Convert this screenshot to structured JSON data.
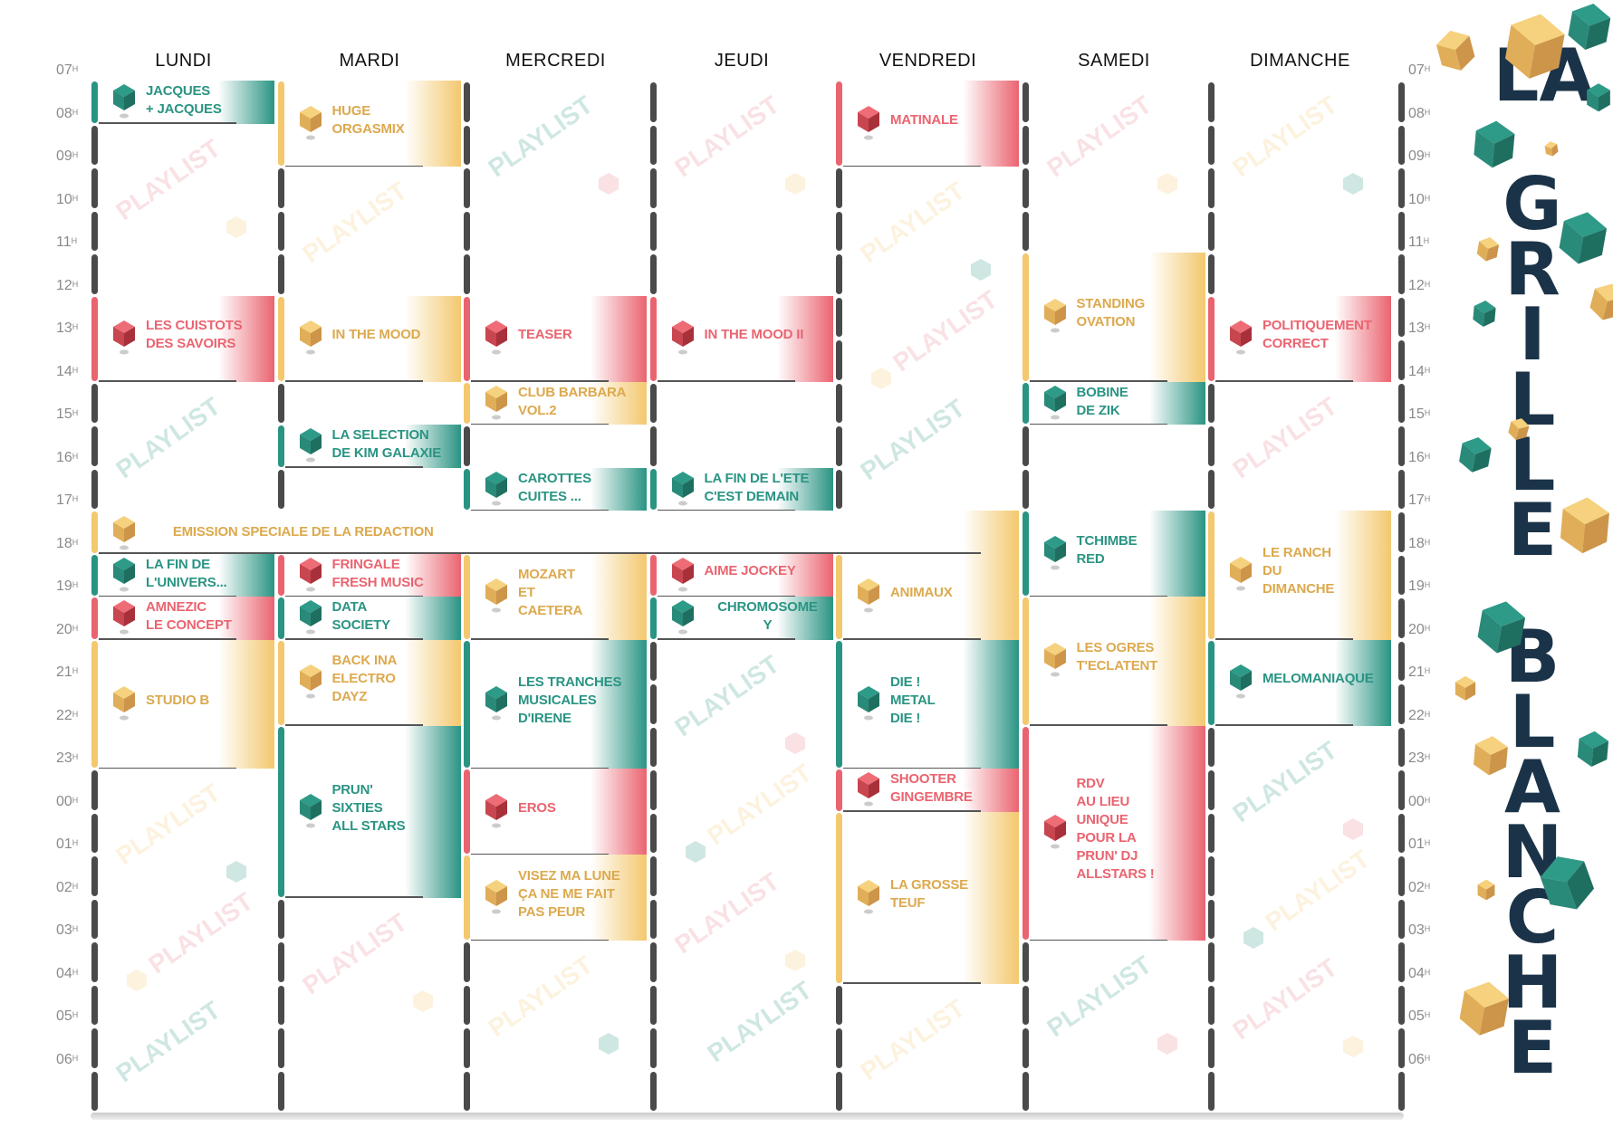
{
  "title": {
    "line1": "LA",
    "line2": "GRILLE",
    "line3": "BLANCHE"
  },
  "watermark": "PLAYLIST",
  "colors": {
    "teal": "#2a9483",
    "yellow": "#f3c86e",
    "red": "#ea6470",
    "grid": "#4a4a4a",
    "title": "#1b3348"
  },
  "days": [
    "LUNDI",
    "MARDI",
    "MERCREDI",
    "JEUDI",
    "VENDREDI",
    "SAMEDI",
    "DIMANCHE"
  ],
  "hours": [
    "07",
    "08",
    "09",
    "10",
    "11",
    "12",
    "13",
    "14",
    "15",
    "16",
    "17",
    "18",
    "19",
    "20",
    "21",
    "22",
    "23",
    "00",
    "01",
    "02",
    "03",
    "04",
    "05",
    "06"
  ],
  "hour_suffix": "H",
  "events": [
    {
      "day": 0,
      "start": "07",
      "duration": 1,
      "color": "teal",
      "lines": [
        "JACQUES",
        "+ JACQUES"
      ]
    },
    {
      "day": 0,
      "start": "12",
      "duration": 2,
      "color": "red",
      "lines": [
        "LES CUISTOTS",
        "DES SAVOIRS"
      ]
    },
    {
      "day": 0,
      "start": "17",
      "duration": 1,
      "color": "yellow",
      "span": 5,
      "lines": [
        "EMISSION SPECIALE DE LA REDACTION"
      ]
    },
    {
      "day": 0,
      "start": "18",
      "duration": 1,
      "color": "teal",
      "lines": [
        "LA FIN DE",
        "L'UNIVERS..."
      ]
    },
    {
      "day": 0,
      "start": "19",
      "duration": 1,
      "color": "red",
      "lines": [
        "AMNEZIC",
        "LE CONCEPT"
      ]
    },
    {
      "day": 0,
      "start": "20",
      "duration": 3,
      "color": "yellow",
      "lines": [
        "STUDIO B"
      ]
    },
    {
      "day": 1,
      "start": "07",
      "duration": 2,
      "color": "yellow",
      "lines": [
        "HUGE",
        "ORGASMIX"
      ]
    },
    {
      "day": 1,
      "start": "12",
      "duration": 2,
      "color": "yellow",
      "lines": [
        "IN THE MOOD"
      ]
    },
    {
      "day": 1,
      "start": "15",
      "duration": 1,
      "color": "teal",
      "lines": [
        "LA SELECTION",
        "DE KIM GALAXIE"
      ]
    },
    {
      "day": 1,
      "start": "18",
      "duration": 1,
      "color": "red",
      "lines": [
        "FRINGALE",
        "FRESH MUSIC"
      ]
    },
    {
      "day": 1,
      "start": "19",
      "duration": 1,
      "color": "teal",
      "lines": [
        "DATA",
        "SOCIETY"
      ]
    },
    {
      "day": 1,
      "start": "20",
      "duration": 2,
      "color": "yellow",
      "lines": [
        "BACK INA",
        "ELECTRO",
        "DAYZ"
      ]
    },
    {
      "day": 1,
      "start": "22",
      "duration": 4,
      "color": "teal",
      "lines": [
        "PRUN'",
        "SIXTIES",
        "ALL STARS"
      ]
    },
    {
      "day": 2,
      "start": "12",
      "duration": 2,
      "color": "red",
      "lines": [
        "TEASER"
      ]
    },
    {
      "day": 2,
      "start": "14",
      "duration": 1,
      "color": "yellow",
      "lines": [
        "CLUB BARBARA",
        "VOL.2"
      ]
    },
    {
      "day": 2,
      "start": "16",
      "duration": 1,
      "color": "teal",
      "lines": [
        "CAROTTES",
        "CUITES ..."
      ]
    },
    {
      "day": 2,
      "start": "18",
      "duration": 2,
      "color": "yellow",
      "lines": [
        "MOZART",
        "ET",
        "CAETERA"
      ]
    },
    {
      "day": 2,
      "start": "20",
      "duration": 3,
      "color": "teal",
      "lines": [
        "LES TRANCHES",
        "MUSICALES",
        "D'IRENE"
      ]
    },
    {
      "day": 2,
      "start": "23",
      "duration": 2,
      "color": "red",
      "lines": [
        "EROS"
      ]
    },
    {
      "day": 2,
      "start": "01",
      "duration": 2,
      "color": "yellow",
      "lines": [
        "VISEZ MA LUNE",
        "ÇA NE ME FAIT",
        "PAS PEUR"
      ]
    },
    {
      "day": 3,
      "start": "12",
      "duration": 2,
      "color": "red",
      "lines": [
        "IN THE MOOD II"
      ]
    },
    {
      "day": 3,
      "start": "16",
      "duration": 1,
      "color": "teal",
      "lines": [
        "LA FIN DE L'ETE",
        "C'EST DEMAIN"
      ]
    },
    {
      "day": 3,
      "start": "18",
      "duration": 1,
      "color": "red",
      "lines": [
        "AIME JOCKEY"
      ]
    },
    {
      "day": 3,
      "start": "19",
      "duration": 1,
      "color": "teal",
      "center": true,
      "lines": [
        "CHROMOSOME",
        "Y"
      ]
    },
    {
      "day": 4,
      "start": "07",
      "duration": 2,
      "color": "red",
      "lines": [
        "MATINALE"
      ]
    },
    {
      "day": 4,
      "start": "18",
      "duration": 2,
      "color": "yellow",
      "lines": [
        "ANIMAUX"
      ]
    },
    {
      "day": 4,
      "start": "20",
      "duration": 3,
      "color": "teal",
      "lines": [
        "DIE !",
        "METAL",
        "DIE !"
      ]
    },
    {
      "day": 4,
      "start": "23",
      "duration": 1,
      "color": "red",
      "lines": [
        "SHOOTER",
        "GINGEMBRE"
      ]
    },
    {
      "day": 4,
      "start": "00",
      "duration": 4,
      "color": "yellow",
      "lines": [
        "LA GROSSE",
        "TEUF"
      ]
    },
    {
      "day": 5,
      "start": "11",
      "duration": 3,
      "color": "yellow",
      "lines": [
        "STANDING",
        "OVATION"
      ]
    },
    {
      "day": 5,
      "start": "14",
      "duration": 1,
      "color": "teal",
      "lines": [
        "BOBINE",
        "DE ZIK"
      ]
    },
    {
      "day": 5,
      "start": "17",
      "duration": 2,
      "color": "teal",
      "lines": [
        "TCHIMBE",
        "RED"
      ]
    },
    {
      "day": 5,
      "start": "19",
      "duration": 3,
      "color": "yellow",
      "lines": [
        "LES OGRES",
        "T'ECLATENT"
      ]
    },
    {
      "day": 5,
      "start": "22",
      "duration": 5,
      "color": "red",
      "lines": [
        "RDV",
        "AU LIEU",
        "UNIQUE",
        "POUR LA",
        "PRUN' DJ",
        "ALLSTARS !"
      ]
    },
    {
      "day": 6,
      "start": "12",
      "duration": 2,
      "color": "red",
      "lines": [
        "POLITIQUEMENT",
        "CORRECT"
      ]
    },
    {
      "day": 6,
      "start": "17",
      "duration": 3,
      "color": "yellow",
      "lines": [
        "LE RANCH",
        "DU",
        "DIMANCHE"
      ]
    },
    {
      "day": 6,
      "start": "20",
      "duration": 2,
      "color": "teal",
      "lines": [
        "MELOMANIAQUE"
      ]
    }
  ]
}
